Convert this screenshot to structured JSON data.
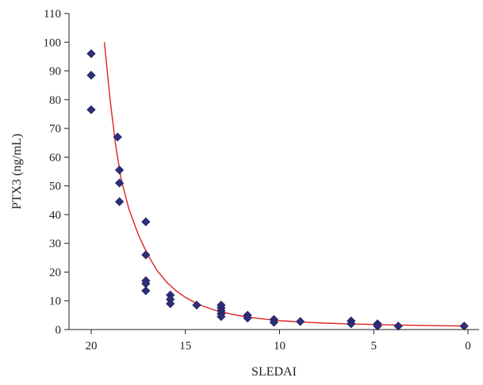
{
  "chart_data": {
    "type": "scatter",
    "title": "",
    "xlabel": "SLEDAI",
    "ylabel": "PTX3 (ng/mL)",
    "xlim": [
      21,
      -1
    ],
    "x_reversed": true,
    "ylim": [
      0,
      110
    ],
    "x_ticks": [
      20,
      15,
      10,
      5,
      0
    ],
    "x_tick_labels": [
      "20",
      "15",
      "10",
      "5",
      "0"
    ],
    "y_ticks": [
      0,
      10,
      20,
      30,
      40,
      50,
      60,
      70,
      80,
      90,
      100,
      110
    ],
    "y_tick_labels": [
      "0",
      "10",
      "20",
      "30",
      "40",
      "50",
      "60",
      "70",
      "80",
      "90",
      "100",
      "110"
    ],
    "grid": false,
    "legend": "none",
    "series": [
      {
        "kind": "points",
        "marker": "diamond",
        "color": "#2e2e7a",
        "x": [
          20,
          20,
          20,
          18.6,
          18.5,
          18.5,
          18.5,
          17.1,
          17.1,
          17.1,
          17.1,
          17.1,
          15.8,
          15.8,
          15.8,
          14.4,
          13.1,
          13.1,
          13.1,
          13.1,
          13.1,
          11.7,
          11.7,
          10.3,
          10.3,
          8.9,
          6.2,
          6.2,
          4.8,
          4.8,
          3.7,
          0.2
        ],
        "y": [
          96,
          88.5,
          76.5,
          67,
          55.5,
          51,
          44.5,
          37.5,
          26,
          17,
          16,
          13.5,
          12,
          10.5,
          9,
          8.5,
          8.5,
          7.5,
          6.5,
          5.5,
          4.5,
          5,
          4,
          3.5,
          2.5,
          2.8,
          3,
          2,
          2,
          1.2,
          1.2,
          1.2
        ]
      },
      {
        "kind": "fit-line",
        "color": "#e02020",
        "x": [
          19.3,
          19.0,
          18.7,
          18.4,
          18.0,
          17.5,
          17.0,
          16.5,
          16.0,
          15.5,
          15.0,
          14.5,
          14.0,
          13.5,
          13.0,
          12.5,
          12.0,
          11.5,
          11.0,
          10.5,
          10.0,
          9.5,
          9.0,
          8.5,
          8.0,
          7.5,
          7.0,
          6.0,
          5.0,
          4.0,
          3.0,
          2.0,
          1.0,
          0.0
        ],
        "y": [
          100,
          80,
          64,
          52,
          42,
          33,
          26,
          20.5,
          16.5,
          13.5,
          11.2,
          9.4,
          8.0,
          6.9,
          6.0,
          5.3,
          4.7,
          4.2,
          3.8,
          3.4,
          3.1,
          2.9,
          2.7,
          2.5,
          2.35,
          2.2,
          2.1,
          1.9,
          1.75,
          1.6,
          1.5,
          1.4,
          1.3,
          1.25
        ]
      }
    ]
  }
}
